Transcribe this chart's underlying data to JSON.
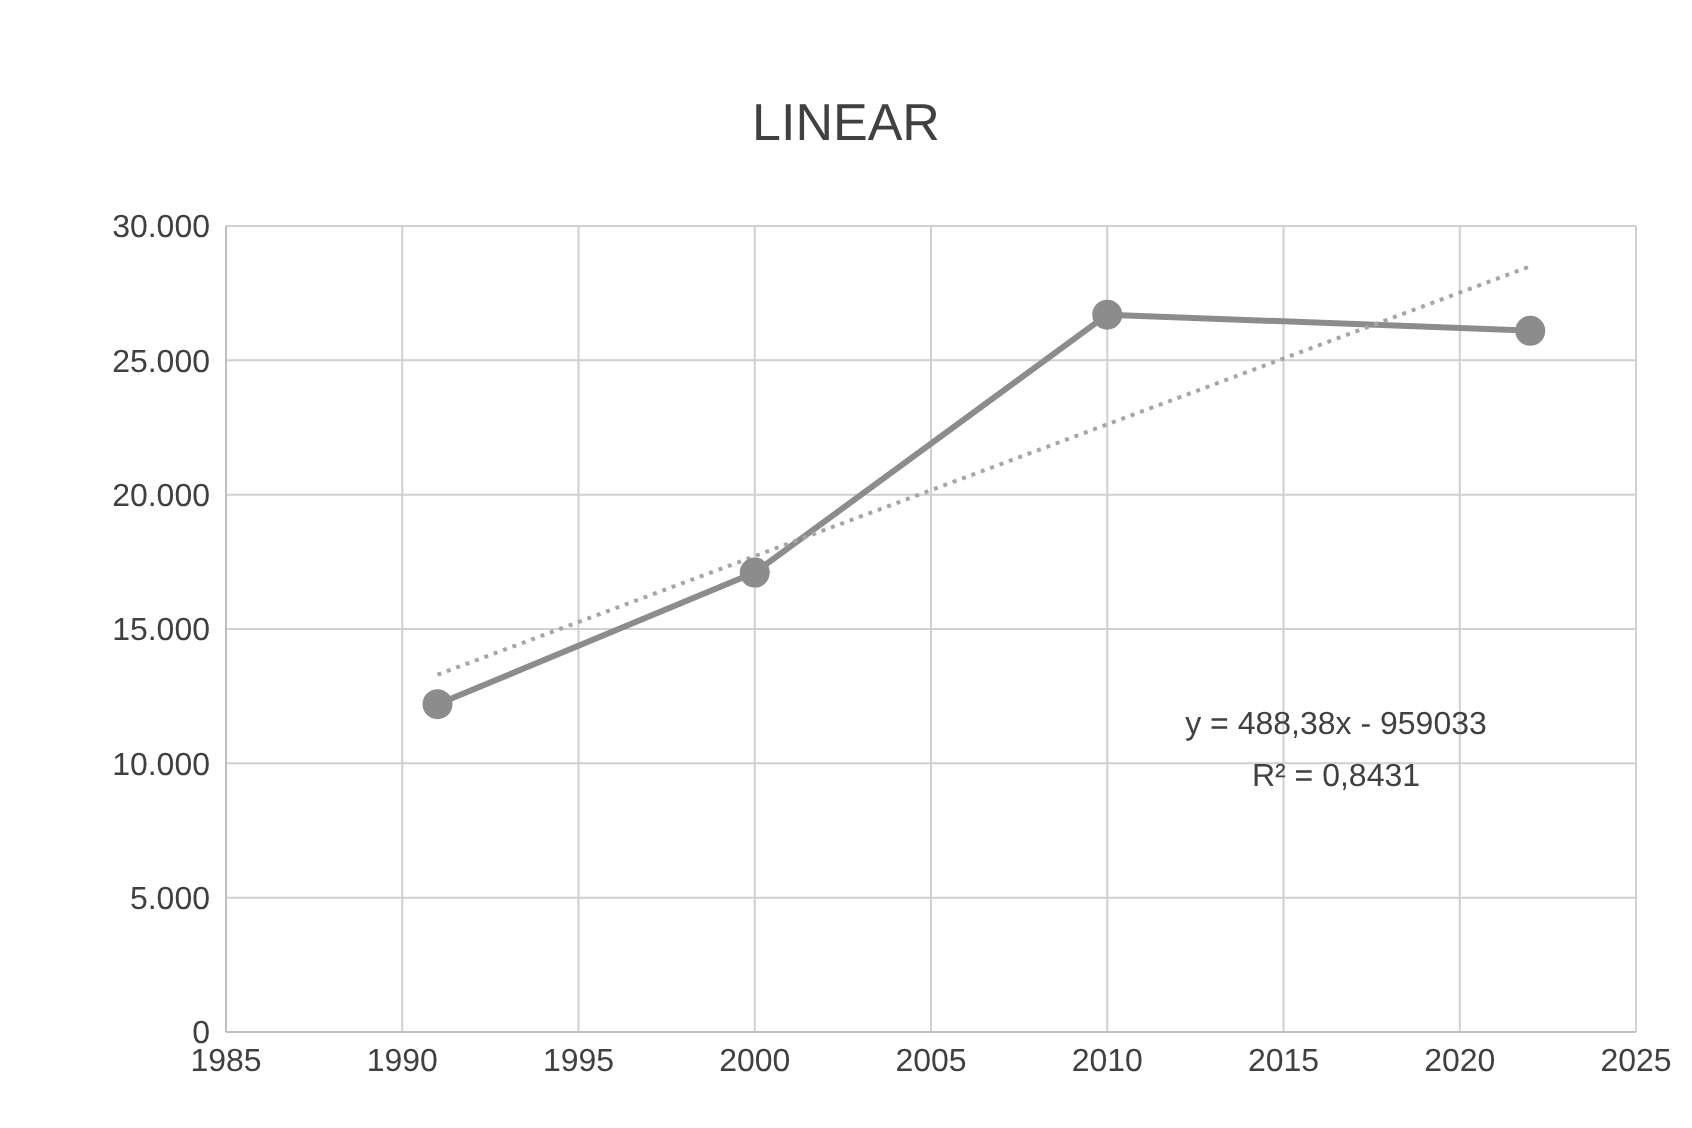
{
  "chart_data": {
    "type": "line",
    "title": "LINEAR",
    "xlim": [
      1985,
      2025
    ],
    "xticks": [
      1985,
      1990,
      1995,
      2000,
      2005,
      2010,
      2015,
      2020,
      2025
    ],
    "ylim": [
      0,
      30000
    ],
    "yticks": [
      0,
      {
        "value": 5000,
        "label": "5.000"
      },
      {
        "value": 10000,
        "label": "10.000"
      },
      {
        "value": 15000,
        "label": "15.000"
      },
      {
        "value": 20000,
        "label": "20.000"
      },
      {
        "value": 25000,
        "label": "25.000"
      },
      {
        "value": 30000,
        "label": "30.000"
      }
    ],
    "grid": true,
    "series": [
      {
        "color": "#8c8c8c",
        "x": [
          1991,
          2000,
          2010,
          2022
        ],
        "values": [
          12200,
          17100,
          26700,
          26100
        ],
        "marker": "circle",
        "line_style": "solid"
      },
      {
        "color": "#a6a6a6",
        "x": [
          1991,
          2022
        ],
        "values": [
          13300,
          28500
        ],
        "marker": "none",
        "line_style": "dotted"
      }
    ],
    "annotations": [
      "y = 488,38x - 959033",
      "R² = 0,8431"
    ]
  }
}
